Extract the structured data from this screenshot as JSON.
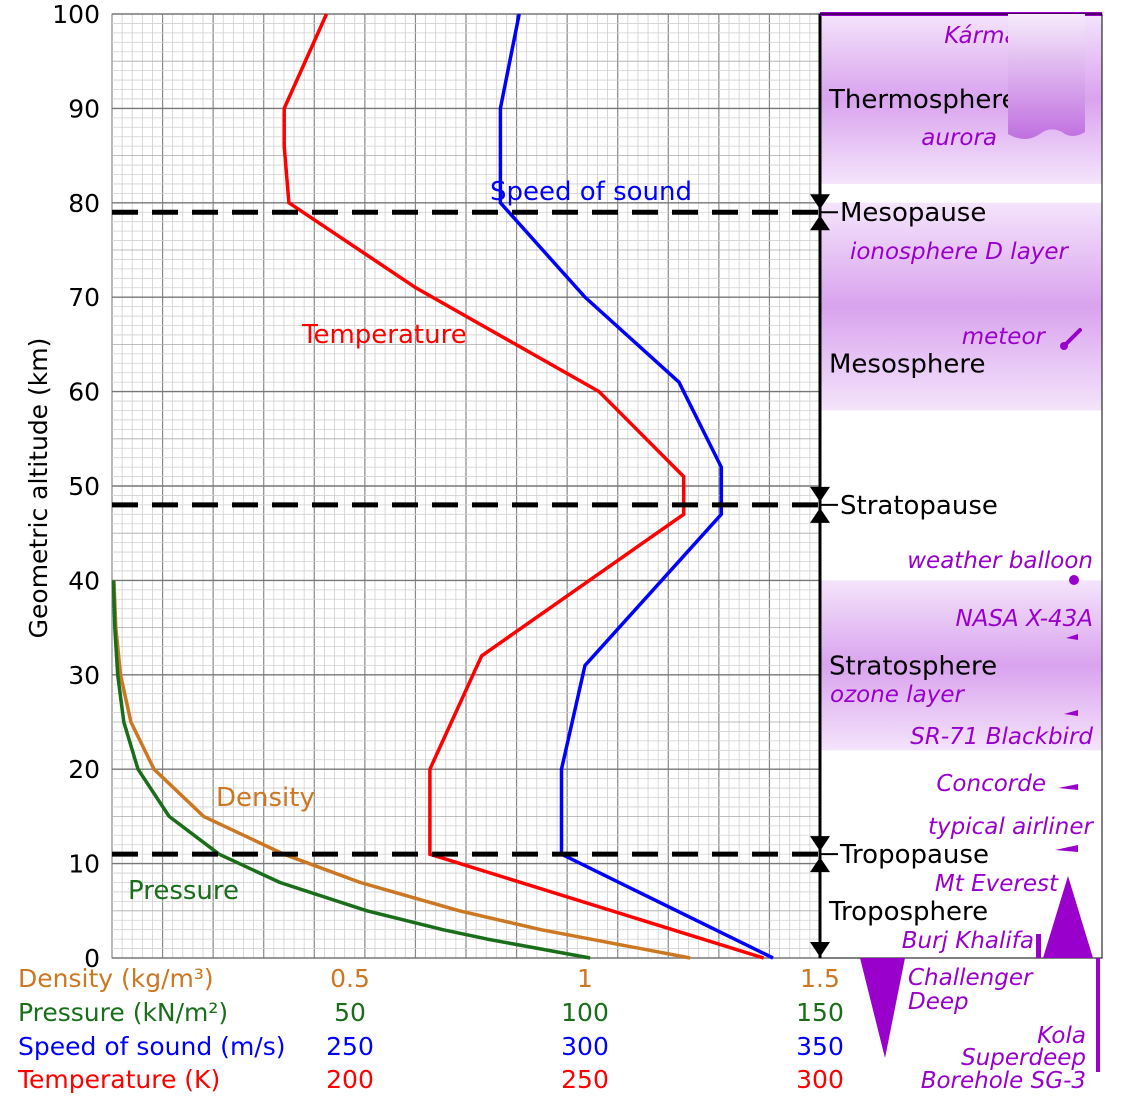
{
  "chart_data": {
    "type": "line",
    "ylabel": "Geometric altitude (km)",
    "ylim": [
      0,
      100
    ],
    "yticks": [
      "0",
      "10",
      "20",
      "30",
      "40",
      "50",
      "60",
      "70",
      "80",
      "90",
      "100"
    ],
    "grid": true,
    "series": [
      {
        "name": "Temperature",
        "unit_label": "Temperature (K)",
        "color": "#ff0000",
        "scale_ticks": [
          "200",
          "250",
          "300"
        ],
        "scale_range": [
          200,
          300
        ],
        "points": [
          [
            288,
            0
          ],
          [
            217,
            11
          ],
          [
            217,
            20
          ],
          [
            228,
            32
          ],
          [
            271,
            47
          ],
          [
            271,
            51
          ],
          [
            253,
            60
          ],
          [
            214,
            71
          ],
          [
            187,
            80
          ],
          [
            186,
            86
          ],
          [
            186,
            90
          ],
          [
            195,
            100
          ]
        ]
      },
      {
        "name": "Speed of sound",
        "unit_label": "Speed of sound (m/s)",
        "color": "#0000ff",
        "scale_ticks": [
          "250",
          "300",
          "350"
        ],
        "scale_range": [
          250,
          350
        ],
        "points": [
          [
            340,
            0
          ],
          [
            295,
            11
          ],
          [
            295,
            20
          ],
          [
            300,
            31
          ],
          [
            329,
            47
          ],
          [
            329,
            52
          ],
          [
            320,
            61
          ],
          [
            300,
            70
          ],
          [
            282,
            80
          ],
          [
            282,
            90
          ],
          [
            286,
            100
          ]
        ]
      },
      {
        "name": "Density",
        "unit_label": "Density (kg/m³)",
        "color": "#cc7722",
        "scale_ticks": [
          "0.5",
          "1",
          "1.5"
        ],
        "scale_range": [
          0,
          1.5
        ],
        "points": [
          [
            1.225,
            0
          ],
          [
            0.909,
            3
          ],
          [
            0.736,
            5
          ],
          [
            0.526,
            8
          ],
          [
            0.364,
            11
          ],
          [
            0.194,
            15
          ],
          [
            0.089,
            20
          ],
          [
            0.04,
            25
          ],
          [
            0.018,
            30
          ],
          [
            0.008,
            35
          ],
          [
            0.004,
            40
          ]
        ]
      },
      {
        "name": "Pressure",
        "unit_label": "Pressure (kN/m²)",
        "color": "#1a6e1a",
        "scale_ticks": [
          "50",
          "100",
          "150"
        ],
        "scale_range": [
          0,
          150
        ],
        "points": [
          [
            101.3,
            0
          ],
          [
            79.5,
            2
          ],
          [
            70.1,
            3
          ],
          [
            54.0,
            5
          ],
          [
            35.6,
            8
          ],
          [
            22.7,
            11
          ],
          [
            12.1,
            15
          ],
          [
            5.5,
            20
          ],
          [
            2.5,
            25
          ],
          [
            1.2,
            30
          ],
          [
            0.6,
            35
          ],
          [
            0.3,
            40
          ]
        ]
      }
    ],
    "boundaries": [
      {
        "name": "Tropopause",
        "altitude": 11
      },
      {
        "name": "Stratopause",
        "altitude": 48
      },
      {
        "name": "Mesopause",
        "altitude": 79
      }
    ],
    "layers": [
      {
        "name": "Troposphere",
        "altitude": 5
      },
      {
        "name": "Stratosphere",
        "altitude": 31
      },
      {
        "name": "Mesosphere",
        "altitude": 63
      },
      {
        "name": "Thermosphere",
        "altitude": 91
      }
    ],
    "annotations": [
      {
        "label": "Kármán line",
        "altitude": 100
      },
      {
        "label": "aurora",
        "altitude": 85
      },
      {
        "label": "ionosphere D layer",
        "altitude": 74
      },
      {
        "label": "meteor",
        "altitude": 65
      },
      {
        "label": "weather balloon",
        "altitude": 40
      },
      {
        "label": "NASA X-43A",
        "altitude": 34
      },
      {
        "label": "ozone layer",
        "altitude": 27
      },
      {
        "label": "SR-71 Blackbird",
        "altitude": 24
      },
      {
        "label": "Concorde",
        "altitude": 18
      },
      {
        "label": "typical airliner",
        "altitude": 11
      },
      {
        "label": "Mt Everest",
        "altitude": 9
      },
      {
        "label": "Burj Khalifa",
        "altitude": 1
      },
      {
        "label": "Challenger Deep",
        "altitude": -11
      },
      {
        "label": "Kola Superdeep Borehole SG-3",
        "altitude": -12
      }
    ],
    "colors": {
      "annotation": "#9900cc",
      "band": "#d9a3ee"
    }
  }
}
